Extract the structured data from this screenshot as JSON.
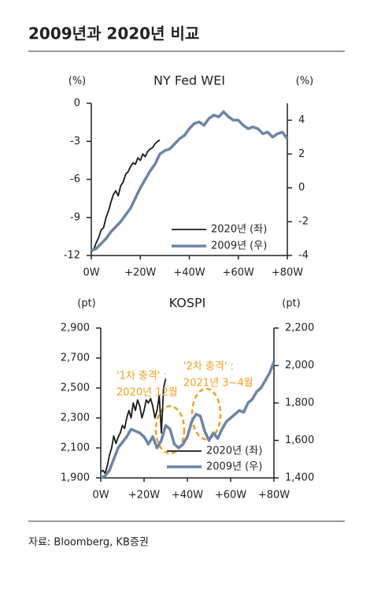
{
  "header": {
    "title": "2009년과 2020년 비교"
  },
  "chart_data": [
    {
      "type": "line",
      "title": "NY Fed WEI",
      "ylabel": "(%)",
      "y2label": "(%)",
      "xlim": [
        0,
        80
      ],
      "xticks": [
        {
          "value": 0,
          "label": "0W"
        },
        {
          "value": 20,
          "label": "+20W"
        },
        {
          "value": 40,
          "label": "+40W"
        },
        {
          "value": 60,
          "label": "+60W"
        },
        {
          "value": 80,
          "label": "+80W"
        }
      ],
      "ylim": [
        -12,
        0
      ],
      "yticks": [
        0,
        -3,
        -6,
        -9,
        -12
      ],
      "y2lim": [
        -4,
        5
      ],
      "y2ticks": [
        4,
        2,
        0,
        -2,
        -4
      ],
      "series": [
        {
          "name": "2020년 (좌)",
          "color": "#1a1a1a",
          "axis": "y",
          "x": [
            0,
            1,
            2,
            3,
            4,
            5,
            6,
            7,
            8,
            9,
            10,
            11,
            12,
            13,
            14,
            15,
            16,
            17,
            18,
            19,
            20,
            21,
            22,
            23,
            24,
            25,
            26,
            27,
            28
          ],
          "values": [
            -11.7,
            -11.5,
            -11.0,
            -10.6,
            -10.0,
            -9.8,
            -9.0,
            -8.5,
            -7.8,
            -7.2,
            -6.9,
            -7.3,
            -6.5,
            -6.2,
            -5.6,
            -5.4,
            -5.0,
            -4.7,
            -4.8,
            -4.3,
            -4.5,
            -4.0,
            -4.2,
            -3.8,
            -3.6,
            -3.5,
            -3.2,
            -3.0,
            -2.9
          ]
        },
        {
          "name": "2009년 (우)",
          "color": "#6d84a6",
          "axis": "y2",
          "x": [
            0,
            2,
            4,
            6,
            8,
            10,
            12,
            14,
            16,
            18,
            20,
            22,
            24,
            26,
            28,
            30,
            32,
            34,
            36,
            38,
            40,
            42,
            44,
            46,
            48,
            50,
            52,
            54,
            56,
            58,
            60,
            62,
            64,
            66,
            68,
            70,
            72,
            74,
            76,
            78,
            80
          ],
          "values": [
            -3.7,
            -3.6,
            -3.3,
            -3.0,
            -2.6,
            -2.3,
            -2.0,
            -1.6,
            -1.2,
            -0.6,
            0.0,
            0.5,
            1.0,
            1.4,
            2.0,
            2.2,
            2.3,
            2.6,
            2.9,
            3.1,
            3.5,
            3.8,
            3.9,
            3.7,
            4.1,
            4.3,
            4.2,
            4.5,
            4.2,
            4.0,
            4.0,
            3.7,
            3.5,
            3.6,
            3.5,
            3.2,
            3.3,
            3.0,
            3.2,
            3.3,
            2.9
          ]
        }
      ]
    },
    {
      "type": "line",
      "title": "KOSPI",
      "ylabel": "(pt)",
      "y2label": "(pt)",
      "xlim": [
        0,
        80
      ],
      "xticks": [
        {
          "value": 0,
          "label": "0W"
        },
        {
          "value": 20,
          "label": "+20W"
        },
        {
          "value": 40,
          "label": "+40W"
        },
        {
          "value": 60,
          "label": "+60W"
        },
        {
          "value": 80,
          "label": "+80W"
        }
      ],
      "ylim": [
        1900,
        2900
      ],
      "yticks": [
        {
          "value": 2900,
          "label": "2,900"
        },
        {
          "value": 2700,
          "label": "2,700"
        },
        {
          "value": 2500,
          "label": "2,500"
        },
        {
          "value": 2300,
          "label": "2,300"
        },
        {
          "value": 2100,
          "label": "2,100"
        },
        {
          "value": 1900,
          "label": "1,900"
        }
      ],
      "y2lim": [
        1400,
        2200
      ],
      "y2ticks": [
        {
          "value": 2200,
          "label": "2,200"
        },
        {
          "value": 2000,
          "label": "2,000"
        },
        {
          "value": 1800,
          "label": "1,800"
        },
        {
          "value": 1600,
          "label": "1,600"
        },
        {
          "value": 1400,
          "label": "1,400"
        }
      ],
      "annotations": [
        [
          "'1차 충격' :",
          "2020년 12월"
        ],
        [
          "'2차 충격' :",
          "2021년 3~4월"
        ]
      ],
      "series": [
        {
          "name": "2020년 (좌)",
          "color": "#1a1a1a",
          "axis": "y",
          "x": [
            0,
            1,
            2,
            3,
            4,
            5,
            6,
            7,
            8,
            9,
            10,
            11,
            12,
            13,
            14,
            15,
            16,
            17,
            18,
            19,
            20,
            21,
            22,
            23,
            24,
            25,
            26,
            27,
            28,
            29,
            30
          ],
          "values": [
            1940,
            1950,
            1930,
            1980,
            2050,
            2100,
            2180,
            2130,
            2170,
            2200,
            2250,
            2230,
            2300,
            2350,
            2300,
            2400,
            2350,
            2420,
            2380,
            2300,
            2350,
            2420,
            2400,
            2430,
            2380,
            2300,
            2350,
            2450,
            2200,
            2500,
            2560
          ]
        },
        {
          "name": "2009년 (우)",
          "color": "#6d84a6",
          "axis": "y2",
          "x": [
            0,
            2,
            4,
            6,
            8,
            10,
            12,
            14,
            16,
            18,
            20,
            22,
            24,
            26,
            28,
            30,
            32,
            34,
            36,
            38,
            40,
            42,
            44,
            46,
            48,
            50,
            52,
            54,
            56,
            58,
            60,
            62,
            64,
            66,
            68,
            70,
            72,
            74,
            76,
            78,
            80
          ],
          "values": [
            1400,
            1410,
            1440,
            1500,
            1560,
            1590,
            1620,
            1660,
            1650,
            1640,
            1620,
            1580,
            1620,
            1560,
            1600,
            1680,
            1660,
            1580,
            1560,
            1580,
            1620,
            1700,
            1740,
            1730,
            1650,
            1600,
            1640,
            1610,
            1660,
            1700,
            1720,
            1740,
            1760,
            1750,
            1800,
            1820,
            1860,
            1880,
            1920,
            1960,
            2020
          ]
        }
      ]
    }
  ],
  "footer": {
    "source": "자료: Bloomberg, KB증권"
  }
}
